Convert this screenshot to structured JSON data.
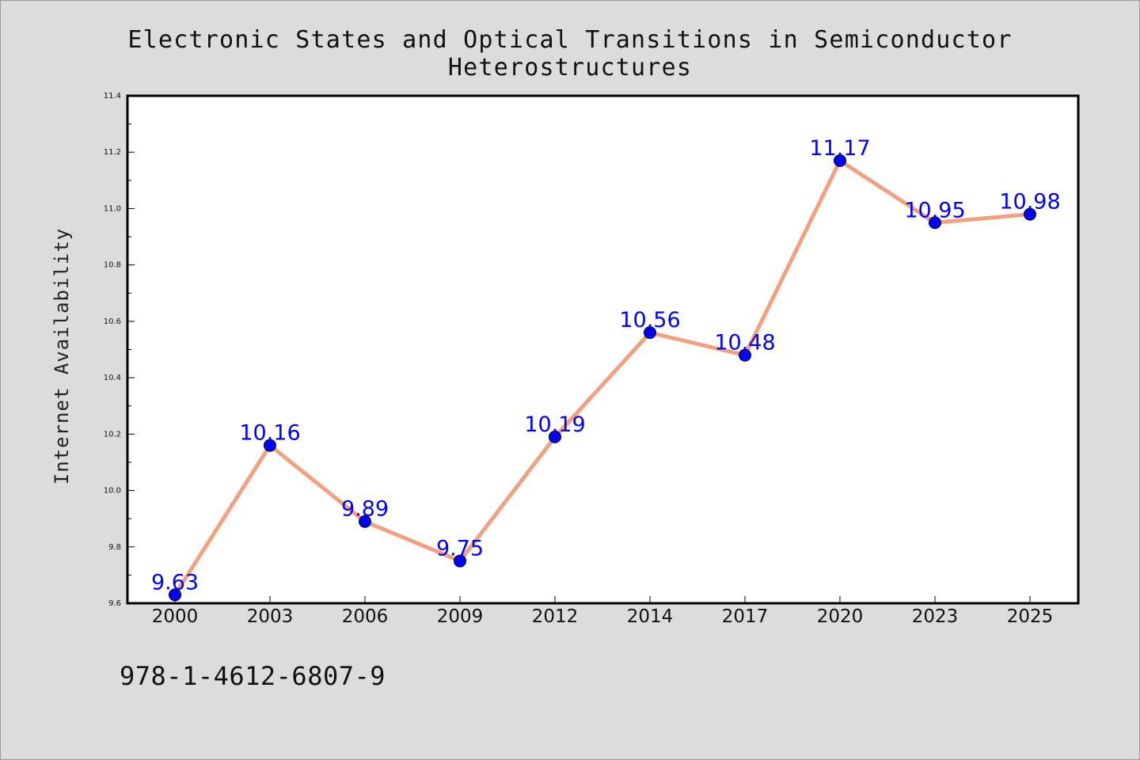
{
  "page": {
    "background": "#dcdcdc",
    "identifier": "978-1-4612-6807-9"
  },
  "chart_data": {
    "type": "line",
    "title": "Electronic States and Optical Transitions in Semiconductor Heterostructures",
    "xlabel": "",
    "ylabel": "Internet Availability",
    "categories": [
      "2000",
      "2003",
      "2006",
      "2009",
      "2012",
      "2014",
      "2017",
      "2020",
      "2023",
      "2025"
    ],
    "series": [
      {
        "values": [
          9.63,
          10.16,
          9.89,
          9.75,
          10.19,
          10.56,
          10.48,
          11.17,
          10.95,
          10.98
        ],
        "data_labels": [
          "9.63",
          "10.16",
          "9.89",
          "9.75",
          "10.19",
          "10.56",
          "10.48",
          "11.17",
          "10.95",
          "10.98"
        ],
        "line_color": "#f4a07e",
        "marker_color": "#0000ff"
      }
    ],
    "ylim": [
      9.6,
      11.4
    ],
    "yticks": [
      9.6,
      9.8,
      10.0,
      10.2,
      10.4,
      10.6,
      10.8,
      11.0,
      11.2,
      11.4
    ],
    "ytick_labels": [
      "9.6",
      "9.8",
      "10.0",
      "10.2",
      "10.4",
      "10.6",
      "10.8",
      "11.0",
      "11.2",
      "11.4"
    ],
    "grid": false,
    "legend": "none"
  }
}
